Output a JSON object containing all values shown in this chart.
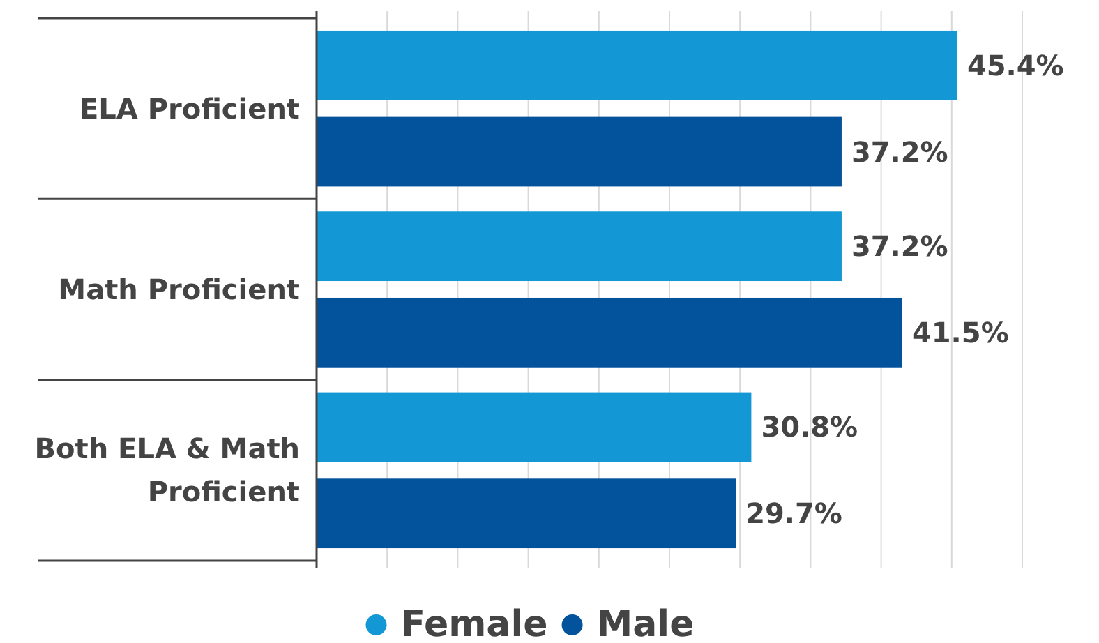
{
  "chart_data": {
    "type": "bar",
    "orientation": "horizontal",
    "categories": [
      "ELA Proficient",
      "Math Proficient",
      "Both ELA & Math Proficient"
    ],
    "series": [
      {
        "name": "Female",
        "color": "#1497d5",
        "values": [
          45.4,
          37.2,
          30.8
        ],
        "value_labels": [
          "45.4%",
          "37.2%",
          "30.8%"
        ]
      },
      {
        "name": "Male",
        "color": "#02529c",
        "values": [
          37.2,
          41.5,
          29.7
        ],
        "value_labels": [
          "37.2%",
          "41.5%",
          "29.7%"
        ]
      }
    ],
    "xlim": [
      0,
      50
    ],
    "xticks": [
      {
        "value": 0,
        "label": null
      },
      {
        "value": 5,
        "label": null
      },
      {
        "value": 10,
        "label": null
      },
      {
        "value": 15,
        "label": null
      },
      {
        "value": 20,
        "label": null
      },
      {
        "value": 25,
        "label": null
      },
      {
        "value": 30,
        "label": null
      },
      {
        "value": 35,
        "label": null
      },
      {
        "value": 40,
        "label": null
      },
      {
        "value": 45,
        "label": null
      },
      {
        "value": 50,
        "label": null
      }
    ],
    "grid": "x",
    "legend": "bottom",
    "tick_labels": "y"
  }
}
